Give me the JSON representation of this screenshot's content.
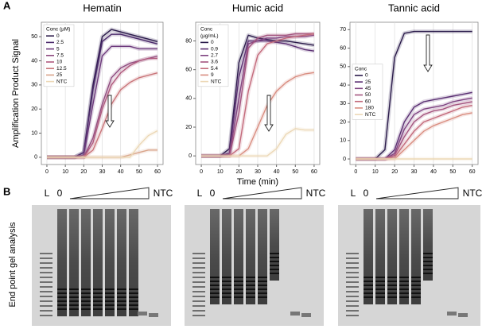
{
  "panel_labels": [
    "A",
    "B"
  ],
  "chart_data": [
    {
      "type": "line",
      "title": "Hematin",
      "ylabel": "Amplification Product Signal",
      "legend_title": [
        "Conc (µM)"
      ],
      "legend": "upper left",
      "grid": "x",
      "x": [
        0,
        5,
        10,
        15,
        20,
        25,
        30,
        35,
        40,
        45,
        50,
        55,
        60
      ],
      "xlim": [
        -3,
        63
      ],
      "xticks": [
        0,
        10,
        20,
        30,
        40,
        50,
        60
      ],
      "ylim": [
        -3,
        56
      ],
      "yticks": [
        0,
        10,
        20,
        30,
        40,
        50
      ],
      "series": [
        {
          "name": "0",
          "color": "#2a1a4a",
          "values": [
            0,
            0,
            0,
            0,
            2,
            30,
            50,
            53,
            52,
            51,
            50,
            49,
            48
          ]
        },
        {
          "name": "2.5",
          "color": "#4b2a6b",
          "values": [
            0,
            0,
            0,
            0,
            2,
            28,
            48,
            51,
            51,
            50,
            49,
            48,
            47
          ]
        },
        {
          "name": "5",
          "color": "#6d3a7c",
          "values": [
            0,
            0,
            0,
            0,
            1,
            22,
            42,
            46,
            46,
            46,
            45,
            45,
            45
          ]
        },
        {
          "name": "7.5",
          "color": "#8e4a7f",
          "values": [
            0,
            0,
            0,
            0,
            0,
            8,
            22,
            33,
            37,
            39,
            40,
            41,
            42
          ]
        },
        {
          "name": "10",
          "color": "#b05a7e",
          "values": [
            0,
            0,
            0,
            0,
            0,
            6,
            20,
            30,
            35,
            38,
            40,
            41,
            41
          ]
        },
        {
          "name": "12.5",
          "color": "#c9757a",
          "values": [
            0,
            0,
            0,
            0,
            0,
            3,
            12,
            22,
            28,
            31,
            33,
            34,
            35
          ]
        },
        {
          "name": "25",
          "color": "#d9a48a",
          "values": [
            0,
            0,
            0,
            0,
            0,
            0,
            0,
            0,
            0,
            1,
            2,
            3,
            3
          ]
        },
        {
          "name": "NTC",
          "color": "#ecd8b6",
          "values": [
            0,
            0,
            0,
            0,
            0,
            0,
            0,
            0,
            0,
            0,
            5,
            9,
            11
          ]
        }
      ]
    },
    {
      "type": "line",
      "title": "Humic acid",
      "xlabel": "Time (min)",
      "legend_title": [
        "Conc",
        "(µg/mL)"
      ],
      "legend": "upper left",
      "grid": "x",
      "x": [
        0,
        5,
        10,
        15,
        20,
        25,
        30,
        35,
        40,
        45,
        50,
        55,
        60
      ],
      "xlim": [
        -3,
        63
      ],
      "xticks": [
        0,
        10,
        20,
        30,
        40,
        50,
        60
      ],
      "ylim": [
        -6,
        93
      ],
      "yticks": [
        0,
        20,
        40,
        60,
        80
      ],
      "series": [
        {
          "name": "0",
          "color": "#2a1a4a",
          "values": [
            0,
            0,
            0,
            5,
            65,
            84,
            82,
            81,
            80,
            80,
            79,
            78,
            77
          ]
        },
        {
          "name": "0.9",
          "color": "#5a2f72",
          "values": [
            0,
            0,
            0,
            2,
            55,
            80,
            80,
            80,
            79,
            78,
            76,
            74,
            73
          ]
        },
        {
          "name": "2.7",
          "color": "#7e4280",
          "values": [
            0,
            0,
            0,
            1,
            40,
            78,
            80,
            82,
            82,
            83,
            83,
            83,
            84
          ]
        },
        {
          "name": "3.6",
          "color": "#a4547f",
          "values": [
            0,
            0,
            0,
            0,
            30,
            75,
            82,
            84,
            84,
            84,
            85,
            85,
            85
          ]
        },
        {
          "name": "5.4",
          "color": "#c36a7b",
          "values": [
            0,
            0,
            0,
            0,
            5,
            45,
            70,
            78,
            80,
            82,
            83,
            84,
            85
          ]
        },
        {
          "name": "9",
          "color": "#d98d80",
          "values": [
            0,
            0,
            0,
            0,
            0,
            5,
            20,
            35,
            45,
            51,
            55,
            57,
            58
          ]
        },
        {
          "name": "NTC",
          "color": "#ecd8b6",
          "values": [
            0,
            0,
            0,
            0,
            0,
            0,
            0,
            0,
            5,
            15,
            19,
            18,
            18
          ]
        }
      ]
    },
    {
      "type": "line",
      "title": "Tannic acid",
      "legend_title": [
        "Conc"
      ],
      "legend": "center left",
      "grid": "x",
      "x": [
        0,
        5,
        10,
        15,
        20,
        25,
        30,
        35,
        40,
        45,
        50,
        55,
        60
      ],
      "xlim": [
        -3,
        63
      ],
      "xticks": [
        0,
        10,
        20,
        30,
        40,
        50,
        60
      ],
      "ylim": [
        -3,
        74
      ],
      "yticks": [
        0,
        10,
        20,
        30,
        40,
        50,
        60,
        70
      ],
      "series": [
        {
          "name": "0",
          "color": "#2a1a4a",
          "values": [
            0,
            0,
            0,
            5,
            55,
            68,
            69,
            69,
            69,
            69,
            69,
            69,
            69
          ]
        },
        {
          "name": "25",
          "color": "#5a2f72",
          "values": [
            0,
            0,
            0,
            0,
            5,
            20,
            28,
            31,
            32,
            33,
            34,
            35,
            36
          ]
        },
        {
          "name": "45",
          "color": "#7e4280",
          "values": [
            0,
            0,
            0,
            0,
            3,
            16,
            24,
            27,
            28,
            29,
            31,
            32,
            33
          ]
        },
        {
          "name": "50",
          "color": "#a4547f",
          "values": [
            0,
            0,
            0,
            0,
            2,
            12,
            20,
            24,
            26,
            27,
            29,
            30,
            31
          ]
        },
        {
          "name": "60",
          "color": "#c36a7b",
          "values": [
            0,
            0,
            0,
            0,
            1,
            8,
            15,
            20,
            22,
            24,
            26,
            28,
            29
          ]
        },
        {
          "name": "180",
          "color": "#d98d80",
          "values": [
            0,
            0,
            0,
            0,
            0,
            5,
            10,
            15,
            18,
            20,
            22,
            24,
            25
          ]
        },
        {
          "name": "NTC",
          "color": "#ecd8b6",
          "values": [
            0,
            0,
            0,
            0,
            0,
            0,
            0,
            0,
            0,
            0,
            0,
            0,
            0
          ]
        }
      ]
    }
  ],
  "gel": {
    "ylabel": "End point gel analysis",
    "lane_labels": [
      [
        "L",
        "0",
        "NTC"
      ],
      [
        "L",
        "0",
        "NTC"
      ],
      [
        "L",
        "0",
        "NTC"
      ]
    ]
  }
}
